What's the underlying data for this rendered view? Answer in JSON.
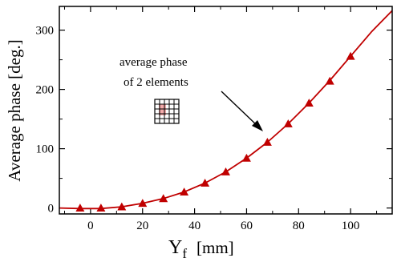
{
  "chart_data": {
    "type": "line",
    "title": "",
    "xlabel": "Y",
    "xlabel_sub": "f",
    "xlabel_unit": "[mm]",
    "ylabel": "Average phase  [deg.]",
    "xlim": [
      -12,
      116
    ],
    "ylim": [
      -10,
      340
    ],
    "xticks": [
      0,
      20,
      40,
      60,
      80,
      100
    ],
    "yticks": [
      0,
      100,
      200,
      300
    ],
    "grid": false,
    "legend": "none",
    "line_color": "#c00000",
    "marker_color": "#c00000",
    "curve": {
      "x": [
        -12,
        -4,
        4,
        12,
        20,
        28,
        36,
        44,
        52,
        60,
        68,
        76,
        84,
        92,
        100,
        108,
        116
      ],
      "y": [
        0,
        -1,
        -1,
        2,
        8,
        16,
        27,
        42,
        61,
        84,
        111,
        142,
        177,
        215,
        256,
        297,
        333
      ]
    },
    "markers": {
      "x": [
        -4,
        4,
        12,
        20,
        28,
        36,
        44,
        52,
        60,
        68,
        76,
        84,
        92,
        100
      ],
      "y": [
        0,
        0,
        2,
        8,
        16,
        27,
        42,
        61,
        84,
        111,
        142,
        177,
        214,
        256
      ]
    },
    "annotations": [
      {
        "text": "average phase",
        "points_to": [
          68,
          120
        ]
      },
      {
        "text": "of 2 elements"
      }
    ]
  }
}
